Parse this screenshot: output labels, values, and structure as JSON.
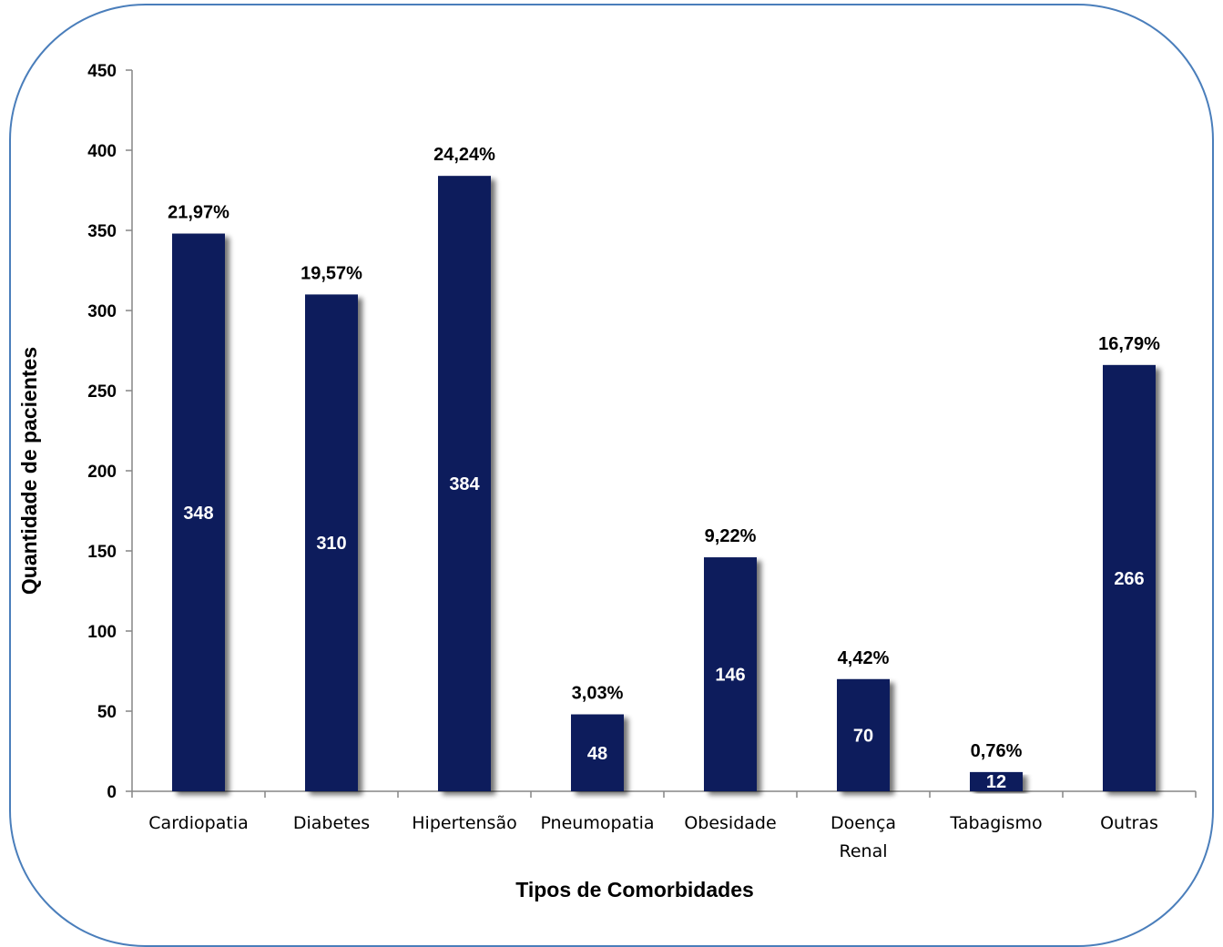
{
  "chart_data": {
    "type": "bar",
    "title": "",
    "xlabel": "Tipos de Comorbidades",
    "ylabel": "Quantidade de pacientes",
    "categories": [
      [
        "Cardiopatia"
      ],
      [
        "Diabetes"
      ],
      [
        "Hipertensão"
      ],
      [
        "Pneumopatia"
      ],
      [
        "Obesidade"
      ],
      [
        "Doença",
        "Renal"
      ],
      [
        "Tabagismo"
      ],
      [
        "Outras"
      ]
    ],
    "values": [
      348,
      310,
      384,
      48,
      146,
      70,
      12,
      266
    ],
    "value_labels": [
      "348",
      "310",
      "384",
      "48",
      "146",
      "70",
      "12",
      "266"
    ],
    "percent_labels": [
      "21,97%",
      "19,57%",
      "24,24%",
      "3,03%",
      "9,22%",
      "4,42%",
      "0,76%",
      "16,79%"
    ],
    "ylim": [
      0,
      450
    ],
    "yticks": [
      0,
      50,
      100,
      150,
      200,
      250,
      300,
      350,
      400,
      450
    ],
    "grid": false,
    "legend": "none",
    "bar_color": "#0d1f5c",
    "frame_color": "#4a7ebb"
  }
}
